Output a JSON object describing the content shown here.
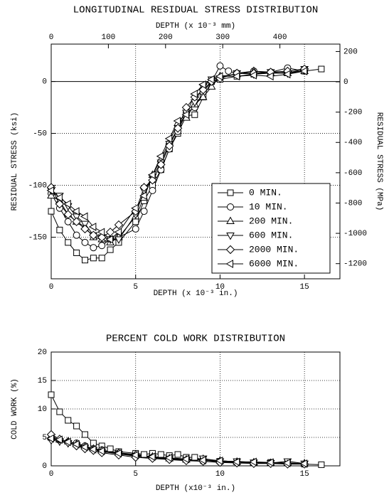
{
  "chart_data": [
    {
      "type": "line",
      "title": "LONGITUDINAL RESIDUAL STRESS DISTRIBUTION",
      "x2label": "DEPTH (x 10⁻³ mm)",
      "xlabel": "DEPTH (x 10⁻³ in.)",
      "ylabel": "RESIDUAL STRESS (ksi)",
      "y2label": "RESIDUAL STRESS (MPa)",
      "xlim": [
        0,
        17.1
      ],
      "xticks": [
        0,
        5,
        10,
        15
      ],
      "x2lim": [
        0,
        505
      ],
      "x2ticks": [
        0,
        100,
        200,
        300,
        400
      ],
      "ylim": [
        -190,
        36
      ],
      "yticks": [
        0,
        -50,
        -100,
        -150
      ],
      "y2lim": [
        -1300,
        249
      ],
      "y2ticks": [
        200,
        0,
        -200,
        -400,
        -600,
        -800,
        -1000,
        -1200
      ],
      "grid": true,
      "legend": "lower right",
      "series": [
        {
          "name": "0 MIN.",
          "color": "#000000",
          "marker": "square",
          "x": [
            0,
            0.5,
            1,
            1.5,
            2,
            2.5,
            3,
            3.5,
            4,
            5,
            5.5,
            6,
            6.5,
            7,
            7.5,
            8,
            8.5,
            9,
            9.5,
            10,
            11,
            12,
            13,
            14,
            15,
            16
          ],
          "values": [
            -125,
            -143,
            -155,
            -165,
            -172,
            -170,
            -170,
            -162,
            -155,
            -135,
            -115,
            -100,
            -85,
            -65,
            -50,
            -33,
            -32,
            -15,
            0,
            2,
            5,
            7,
            8,
            9,
            10,
            12
          ]
        },
        {
          "name": "10 MIN.",
          "color": "#000000",
          "marker": "circle",
          "x": [
            0,
            0.5,
            1,
            1.5,
            2,
            2.5,
            3,
            3.5,
            4,
            5,
            5.5,
            6,
            6.5,
            7,
            7.5,
            8,
            8.5,
            9,
            9.5,
            10,
            10.5,
            11,
            12,
            13,
            14,
            15
          ],
          "values": [
            -108,
            -122,
            -135,
            -148,
            -155,
            -160,
            -158,
            -152,
            -150,
            -142,
            -125,
            -105,
            -85,
            -65,
            -48,
            -30,
            -25,
            -10,
            0,
            15,
            10,
            8,
            10,
            9,
            13,
            10
          ]
        },
        {
          "name": "200 MIN.",
          "color": "#000000",
          "marker": "triangle-up",
          "x": [
            0,
            0.5,
            1,
            1.5,
            2,
            2.5,
            3,
            3.5,
            4,
            5,
            5.5,
            6,
            6.5,
            7,
            7.5,
            8,
            8.5,
            9,
            9.5,
            10,
            11,
            12,
            13,
            14,
            15
          ],
          "values": [
            -110,
            -115,
            -128,
            -135,
            -140,
            -150,
            -152,
            -155,
            -150,
            -130,
            -112,
            -90,
            -75,
            -58,
            -40,
            -35,
            -22,
            -15,
            -5,
            5,
            7,
            10,
            8,
            8,
            10
          ]
        },
        {
          "name": "600 MIN.",
          "color": "#000000",
          "marker": "triangle-down",
          "x": [
            0,
            0.5,
            1,
            1.5,
            2,
            2.5,
            3,
            3.5,
            4,
            5,
            5.5,
            6,
            6.5,
            7,
            7.5,
            8,
            8.5,
            9,
            9.5,
            10,
            11,
            12,
            13,
            14,
            15
          ],
          "values": [
            -105,
            -110,
            -120,
            -130,
            -137,
            -148,
            -150,
            -152,
            -152,
            -128,
            -105,
            -92,
            -78,
            -60,
            -45,
            -30,
            -20,
            -5,
            2,
            3,
            8,
            7,
            9,
            8,
            12
          ]
        },
        {
          "name": "2000 MIN.",
          "color": "#000000",
          "marker": "diamond",
          "x": [
            0,
            0.5,
            1,
            1.5,
            2,
            2.5,
            3,
            3.5,
            4,
            5,
            5.5,
            6,
            6.5,
            7,
            7.5,
            8,
            8.5,
            9,
            9.5,
            10,
            11,
            12,
            13,
            14,
            15
          ],
          "values": [
            -102,
            -118,
            -128,
            -135,
            -142,
            -148,
            -150,
            -145,
            -138,
            -125,
            -102,
            -95,
            -80,
            -62,
            -45,
            -25,
            -15,
            -8,
            0,
            3,
            8,
            8,
            9,
            10,
            12
          ]
        },
        {
          "name": "6000 MIN.",
          "color": "#000000",
          "marker": "triangle-left",
          "x": [
            0,
            0.5,
            1,
            1.5,
            2,
            2.5,
            3,
            3.5,
            4,
            5,
            5.5,
            6,
            6.5,
            7,
            7.5,
            8,
            8.5,
            9,
            9.5,
            10,
            11,
            12,
            13,
            14,
            15
          ],
          "values": [
            -105,
            -112,
            -118,
            -125,
            -130,
            -140,
            -145,
            -152,
            -145,
            -122,
            -110,
            -90,
            -72,
            -55,
            -38,
            -32,
            -12,
            -3,
            2,
            5,
            5,
            6,
            5,
            7,
            10
          ]
        }
      ]
    },
    {
      "type": "line",
      "title": "PERCENT COLD WORK DISTRIBUTION",
      "xlabel": "DEPTH (x10⁻³ in.)",
      "ylabel": "COLD WORK (%)",
      "xlim": [
        0,
        17.1
      ],
      "xticks": [
        0,
        5,
        10,
        15
      ],
      "ylim": [
        0,
        20
      ],
      "yticks": [
        0,
        5,
        10,
        15,
        20
      ],
      "grid": true,
      "series": [
        {
          "color": "#000000",
          "marker": "square",
          "x": [
            0,
            0.5,
            1,
            1.5,
            2,
            2.5,
            3,
            3.5,
            4,
            5,
            5.5,
            6,
            6.5,
            7,
            7.5,
            8,
            8.5,
            9,
            10,
            11,
            12,
            13,
            14,
            15,
            16
          ],
          "values": [
            12.5,
            9.5,
            8,
            7,
            5.5,
            4,
            3.5,
            3,
            2.5,
            2.2,
            2,
            2.2,
            2,
            1.8,
            2,
            1.5,
            1.5,
            1,
            0.8,
            0.7,
            0.5,
            0.6,
            0.5,
            0.3,
            0.2
          ]
        },
        {
          "color": "#000000",
          "marker": "circle",
          "x": [
            0,
            0.5,
            1,
            1.5,
            2,
            2.5,
            3,
            4,
            5,
            6,
            7,
            8,
            9,
            10,
            11,
            12,
            13,
            14,
            15
          ],
          "values": [
            4.8,
            4.5,
            4.2,
            4,
            3.5,
            3,
            2.8,
            2.2,
            1.8,
            1.5,
            1.2,
            1,
            0.8,
            0.7,
            0.6,
            0.5,
            0.5,
            0.4,
            0.3
          ]
        },
        {
          "color": "#000000",
          "marker": "triangle-up",
          "x": [
            0,
            0.5,
            1,
            1.5,
            2,
            2.5,
            3,
            4,
            5,
            6,
            7,
            8,
            9,
            10,
            11,
            12,
            13,
            14,
            15
          ],
          "values": [
            5,
            4.6,
            4.3,
            3.8,
            3.4,
            3,
            2.7,
            2.3,
            2,
            1.6,
            1.3,
            1.1,
            1.2,
            0.9,
            0.7,
            0.6,
            0.5,
            0.5,
            0.4
          ]
        },
        {
          "color": "#000000",
          "marker": "triangle-down",
          "x": [
            0,
            0.5,
            1,
            1.5,
            2,
            2.5,
            3,
            4,
            5,
            6,
            7,
            8,
            9,
            10,
            11,
            12,
            13,
            14,
            15
          ],
          "values": [
            4.5,
            4.3,
            4,
            3.6,
            3.2,
            2.8,
            2.5,
            2.1,
            1.7,
            1.4,
            1.2,
            1,
            1.3,
            0.8,
            0.8,
            0.6,
            0.5,
            0.8,
            0.4
          ]
        },
        {
          "color": "#000000",
          "marker": "diamond",
          "x": [
            0,
            0.5,
            1,
            1.5,
            2,
            2.5,
            3,
            4,
            5,
            6,
            7,
            8,
            9,
            10,
            11,
            12,
            13,
            14,
            15
          ],
          "values": [
            5.5,
            4.7,
            4.1,
            3.5,
            3,
            2.7,
            2.3,
            1.9,
            1.5,
            1.3,
            1.1,
            0.9,
            0.8,
            0.6,
            0.5,
            0.4,
            0.4,
            0.3,
            0.3
          ]
        },
        {
          "color": "#000000",
          "marker": "triangle-left",
          "x": [
            0,
            0.5,
            1,
            1.5,
            2,
            2.5,
            3,
            4,
            5,
            6,
            7,
            8,
            9,
            10,
            11,
            12,
            13,
            14,
            15
          ],
          "values": [
            4.8,
            4.6,
            4.2,
            3.8,
            3.3,
            2.9,
            2.6,
            2.2,
            1.9,
            1.6,
            1.4,
            1.2,
            1,
            0.9,
            0.7,
            0.7,
            0.6,
            0.5,
            0.4
          ]
        }
      ]
    }
  ]
}
